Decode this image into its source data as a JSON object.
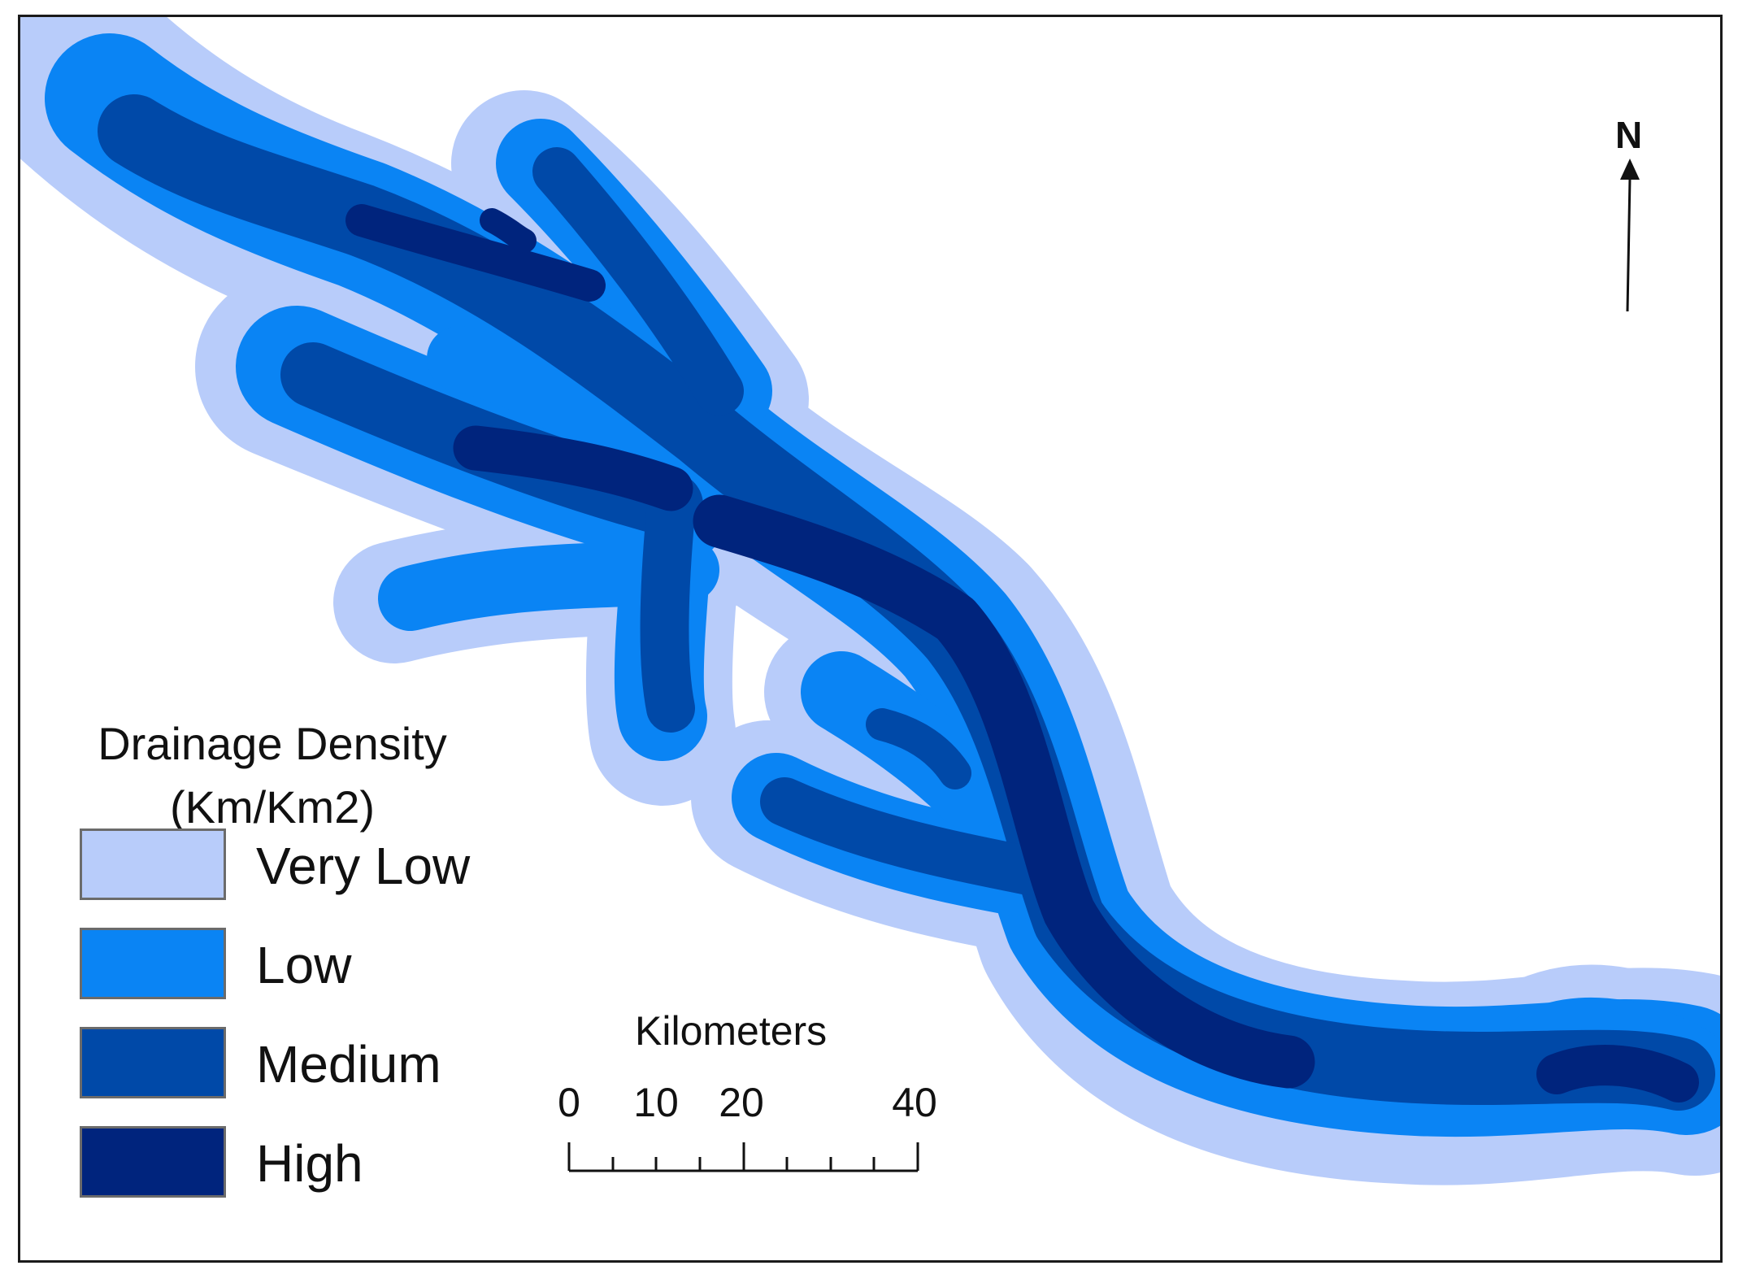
{
  "legend": {
    "title_line1": "Drainage Density",
    "title_line2": "(Km/Km2)",
    "classes": [
      {
        "label": "Very Low",
        "color": "#b8ccfa"
      },
      {
        "label": "Low",
        "color": "#0a84f4"
      },
      {
        "label": "Medium",
        "color": "#0049a8"
      },
      {
        "label": "High",
        "color": "#00247d"
      }
    ]
  },
  "scale_bar": {
    "title": "Kilometers",
    "labels": [
      "0",
      "10",
      "20",
      "40"
    ]
  },
  "north_arrow": {
    "label": "N"
  },
  "colors": {
    "very_low": "#b8ccfa",
    "low": "#0a84f4",
    "medium": "#0049a8",
    "high": "#00247d",
    "frame": "#1a1a1a"
  }
}
